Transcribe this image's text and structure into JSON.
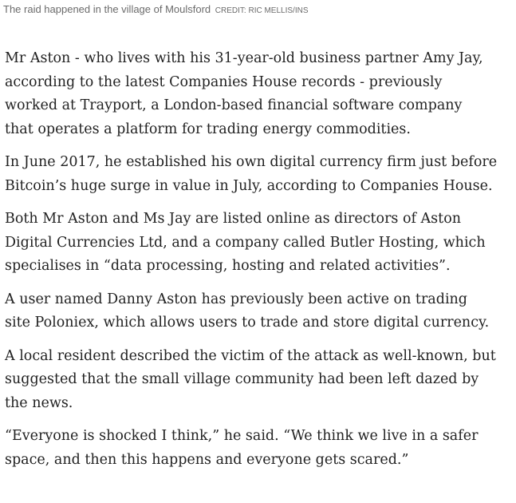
{
  "caption": {
    "text": "The raid happened in the village of Moulsford",
    "credit": "CREDIT: RIC MELLIS/INS"
  },
  "article": {
    "paragraphs": [
      "Mr Aston - who lives with his 31-year-old business partner Amy Jay,\naccording to the latest Companies House records - previously\nworked at Trayport, a London-based financial software company\nthat operates a platform for trading energy commodities.",
      "In June 2017, he established his own digital currency firm just before\nBitcoin’s huge surge in value in July, according to Companies House.",
      "Both Mr Aston and Ms Jay are listed online as directors of Aston\nDigital Currencies Ltd, and a company called Butler Hosting, which\nspecialises in “data processing, hosting and related activities”.",
      "A user named Danny Aston has previously been active on trading\nsite Poloniex, which allows users to trade and store digital currency.",
      "A local resident described the victim of the attack as well-known, but\nsuggested that the small village community had been left dazed by\nthe news.",
      "“Everyone is shocked I think,” he said. “We think we live in a safer\nspace, and then this happens and everyone gets scared.”"
    ]
  }
}
